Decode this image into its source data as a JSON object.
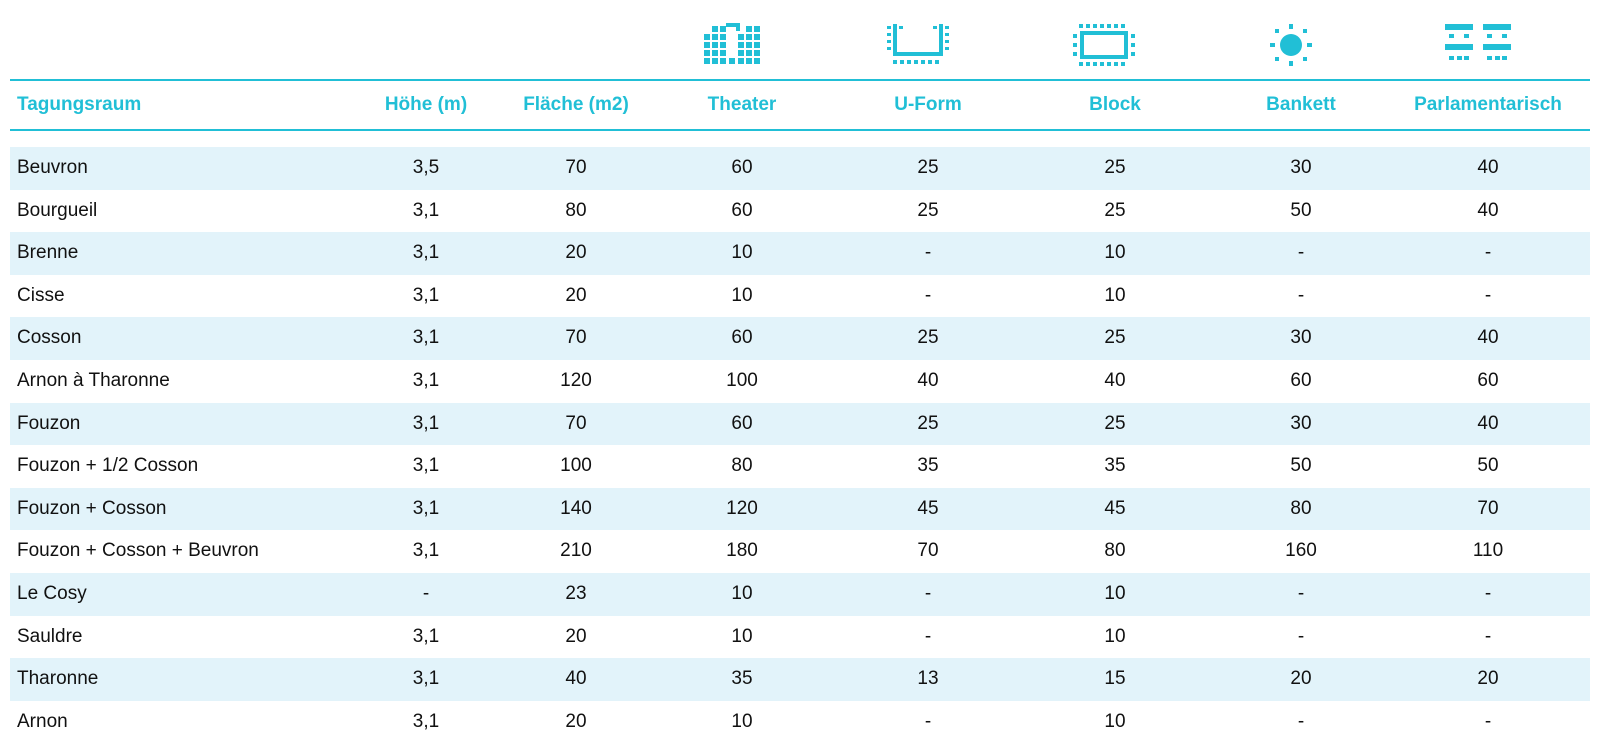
{
  "colors": {
    "accent": "#21bfd6",
    "row_shade": "#e2f3fa",
    "text": "#111111"
  },
  "icons": [
    "theater-layout-icon",
    "u-form-layout-icon",
    "block-layout-icon",
    "bankett-layout-icon",
    "parlamentarisch-layout-icon"
  ],
  "table": {
    "headers": [
      "Tagungsraum",
      "Höhe (m)",
      "Fläche (m2)",
      "Theater",
      "U-Form",
      "Block",
      "Bankett",
      "Parlamentarisch"
    ],
    "rows": [
      [
        "Beuvron",
        "3,5",
        "70",
        "60",
        "25",
        "25",
        "30",
        "40"
      ],
      [
        "Bourgueil",
        "3,1",
        "80",
        "60",
        "25",
        "25",
        "50",
        "40"
      ],
      [
        "Brenne",
        "3,1",
        "20",
        "10",
        "-",
        "10",
        "-",
        "-"
      ],
      [
        "Cisse",
        "3,1",
        "20",
        "10",
        "-",
        "10",
        "-",
        "-"
      ],
      [
        "Cosson",
        "3,1",
        "70",
        "60",
        "25",
        "25",
        "30",
        "40"
      ],
      [
        "Arnon à Tharonne",
        "3,1",
        "120",
        "100",
        "40",
        "40",
        "60",
        "60"
      ],
      [
        "Fouzon",
        "3,1",
        "70",
        "60",
        "25",
        "25",
        "30",
        "40"
      ],
      [
        "Fouzon + 1/2 Cosson",
        "3,1",
        "100",
        "80",
        "35",
        "35",
        "50",
        "50"
      ],
      [
        "Fouzon + Cosson",
        "3,1",
        "140",
        "120",
        "45",
        "45",
        "80",
        "70"
      ],
      [
        "Fouzon + Cosson + Beuvron",
        "3,1",
        "210",
        "180",
        "70",
        "80",
        "160",
        "110"
      ],
      [
        "Le Cosy",
        "-",
        "23",
        "10",
        "-",
        "10",
        "-",
        "-"
      ],
      [
        "Sauldre",
        "3,1",
        "20",
        "10",
        "-",
        "10",
        "-",
        "-"
      ],
      [
        "Tharonne",
        "3,1",
        "40",
        "35",
        "13",
        "15",
        "20",
        "20"
      ],
      [
        "Arnon",
        "3,1",
        "20",
        "10",
        "-",
        "10",
        "-",
        "-"
      ]
    ]
  }
}
